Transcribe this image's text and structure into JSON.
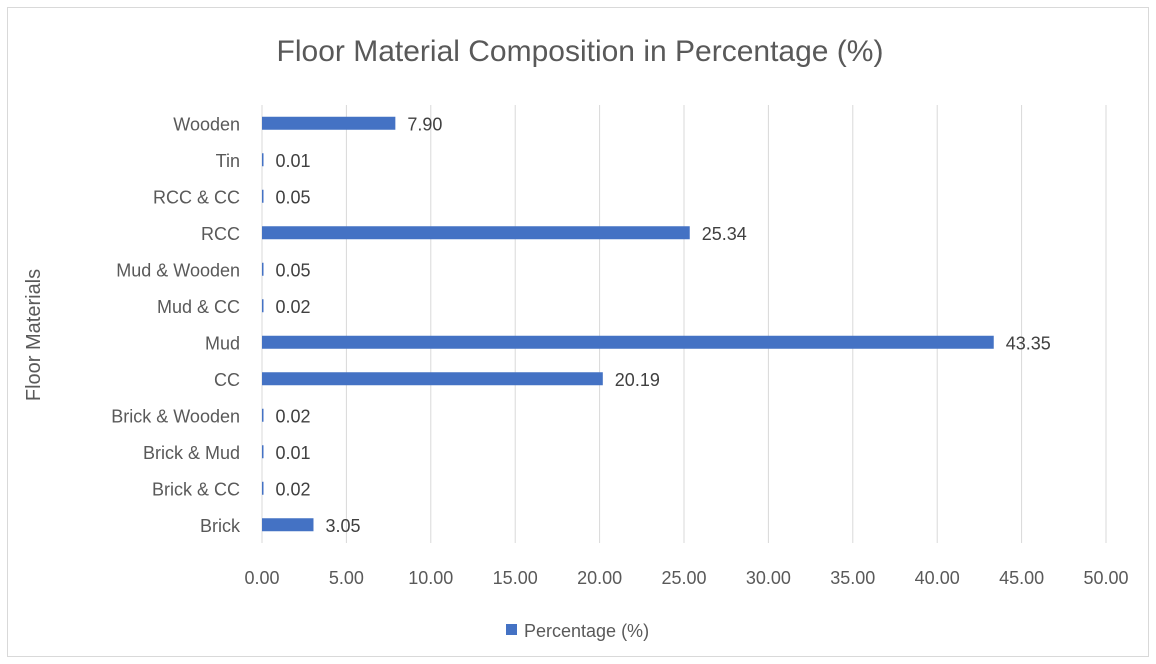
{
  "chart_data": {
    "type": "bar",
    "orientation": "horizontal",
    "title": "Floor Material Composition  in Percentage (%)",
    "xlabel": "",
    "ylabel": "Floor Materials",
    "categories": [
      "Brick",
      "Brick & CC",
      "Brick & Mud",
      "Brick & Wooden",
      "CC",
      "Mud",
      "Mud & CC",
      "Mud & Wooden",
      "RCC",
      "RCC & CC",
      "Tin",
      "Wooden"
    ],
    "series": [
      {
        "name": "Percentage (%)",
        "values": [
          3.05,
          0.02,
          0.01,
          0.02,
          20.19,
          43.35,
          0.02,
          0.05,
          25.34,
          0.05,
          0.01,
          7.9
        ],
        "labels": [
          "3.05",
          "0.02",
          "0.01",
          "0.02",
          "20.19",
          "43.35",
          "0.02",
          "0.05",
          "25.34",
          "0.05",
          "0.01",
          "7.90"
        ],
        "color": "#4472c4"
      }
    ],
    "xlim": [
      0,
      50
    ],
    "xticks": [
      "0.00",
      "5.00",
      "10.00",
      "15.00",
      "20.00",
      "25.00",
      "30.00",
      "35.00",
      "40.00",
      "45.00",
      "50.00"
    ],
    "grid": "vertical",
    "legend": "bottom"
  }
}
